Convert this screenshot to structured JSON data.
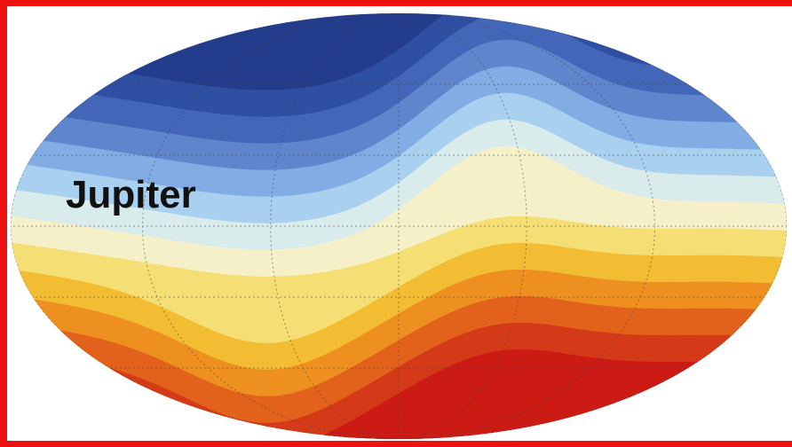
{
  "label": "Jupiter"
}
